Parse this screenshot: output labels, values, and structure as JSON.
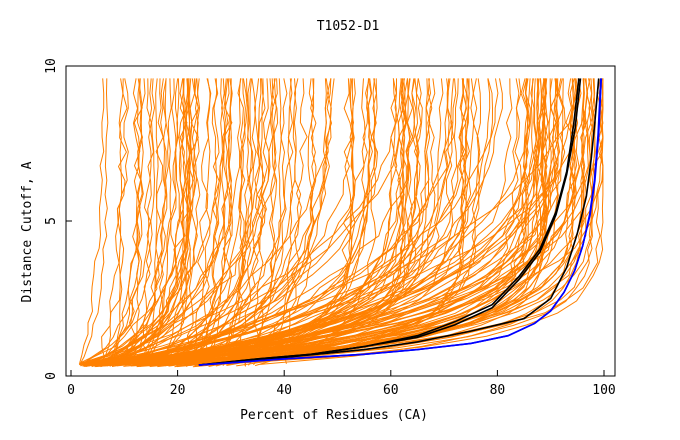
{
  "chart_data": {
    "type": "line",
    "title": "T1052-D1",
    "xlabel": "Percent of Residues (CA)",
    "ylabel": "Distance Cutoff, A",
    "xlim": [
      0,
      100
    ],
    "ylim": [
      0,
      10
    ],
    "xticks": [
      0,
      20,
      40,
      60,
      80,
      100
    ],
    "yticks": [
      0,
      5,
      10
    ],
    "grid": false,
    "colors": {
      "bulk": "#ff8000",
      "highlight_black": "#000000",
      "highlight_blue": "#0000ff",
      "frame": "#000000"
    },
    "bulk_series_count": 200,
    "highlight_series": [
      {
        "color": "#000000",
        "x": [
          24,
          35,
          45,
          55,
          65,
          72,
          79,
          84,
          88,
          91,
          93,
          94.3,
          95.3
        ],
        "y": [
          0.35,
          0.55,
          0.7,
          0.95,
          1.3,
          1.75,
          2.3,
          3.2,
          4.1,
          5.3,
          6.6,
          8.1,
          9.6
        ]
      },
      {
        "color": "#000000",
        "x": [
          24,
          35,
          45,
          55,
          65,
          72,
          79,
          84,
          88,
          91,
          93,
          94.6,
          95.6
        ],
        "y": [
          0.35,
          0.55,
          0.7,
          0.95,
          1.25,
          1.65,
          2.2,
          3.1,
          4.0,
          5.2,
          6.5,
          8.0,
          9.6
        ]
      },
      {
        "color": "#000000",
        "x": [
          24,
          40,
          55,
          65,
          75,
          85,
          90,
          93,
          95,
          96.7,
          97.6,
          98.3,
          99.0
        ],
        "y": [
          0.35,
          0.6,
          0.85,
          1.1,
          1.45,
          1.85,
          2.5,
          3.5,
          4.6,
          5.8,
          7.0,
          8.2,
          9.6
        ]
      },
      {
        "color": "#0000ff",
        "x": [
          24,
          40,
          55,
          65,
          75,
          82,
          87,
          90,
          92.5,
          94.5,
          96,
          97.4,
          98.3,
          99.0,
          99.5
        ],
        "y": [
          0.35,
          0.55,
          0.7,
          0.85,
          1.05,
          1.3,
          1.7,
          2.1,
          2.7,
          3.4,
          4.2,
          5.2,
          6.3,
          7.8,
          9.6
        ]
      },
      {
        "color": "#0000ff",
        "x": [
          24,
          40,
          55,
          65,
          75,
          82,
          87,
          90,
          92.5,
          94.5,
          96,
          97.3,
          98.2,
          98.9,
          99.4
        ],
        "y": [
          0.35,
          0.55,
          0.7,
          0.85,
          1.05,
          1.3,
          1.7,
          2.1,
          2.7,
          3.4,
          4.2,
          5.2,
          6.3,
          7.8,
          9.6
        ]
      }
    ]
  }
}
